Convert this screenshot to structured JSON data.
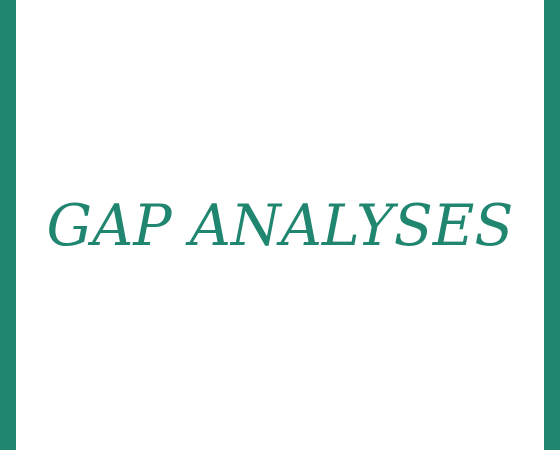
{
  "banner": {
    "title": "GAP ANALYSES"
  },
  "colors": {
    "accent": "#218670",
    "background": "#ffffff"
  }
}
